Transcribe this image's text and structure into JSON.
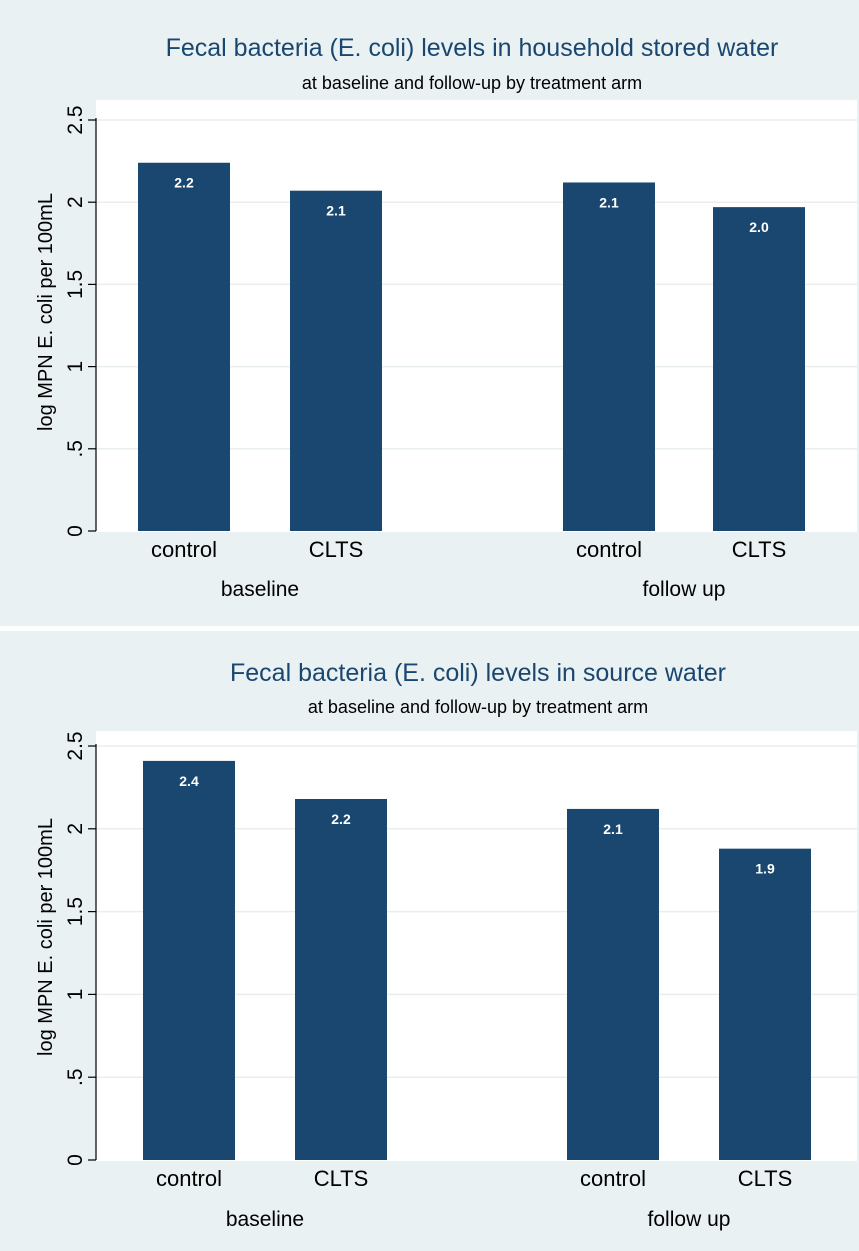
{
  "chart_data": [
    {
      "type": "bar",
      "title": "Fecal bacteria (E. coli) levels in household stored water",
      "subtitle": "at baseline and follow-up by treatment arm",
      "ylabel": "log MPN E. coli per 100mL",
      "ylim": [
        0,
        2.5
      ],
      "yticks": [
        "0",
        ".5",
        "1",
        "1.5",
        "2",
        "2.5"
      ],
      "ytick_values": [
        0,
        0.5,
        1,
        1.5,
        2,
        2.5
      ],
      "grid": true,
      "groups": [
        "baseline",
        "follow up"
      ],
      "categories": [
        "control",
        "CLTS",
        "control",
        "CLTS"
      ],
      "values": [
        2.24,
        2.07,
        2.12,
        1.97
      ],
      "data_labels": [
        "2.2",
        "2.1",
        "2.1",
        "2.0"
      ],
      "bar_color": "#1a476f"
    },
    {
      "type": "bar",
      "title": "Fecal bacteria (E. coli) levels in source water",
      "subtitle": "at baseline and follow-up by treatment arm",
      "ylabel": "log MPN E. coli per 100mL",
      "ylim": [
        0,
        2.5
      ],
      "yticks": [
        "0",
        ".5",
        "1",
        "1.5",
        "2",
        "2.5"
      ],
      "ytick_values": [
        0,
        0.5,
        1,
        1.5,
        2,
        2.5
      ],
      "grid": true,
      "groups": [
        "baseline",
        "follow up"
      ],
      "categories": [
        "control",
        "CLTS",
        "control",
        "CLTS"
      ],
      "values": [
        2.41,
        2.18,
        2.12,
        1.88
      ],
      "data_labels": [
        "2.4",
        "2.2",
        "2.1",
        "1.9"
      ],
      "bar_color": "#1a476f"
    }
  ]
}
